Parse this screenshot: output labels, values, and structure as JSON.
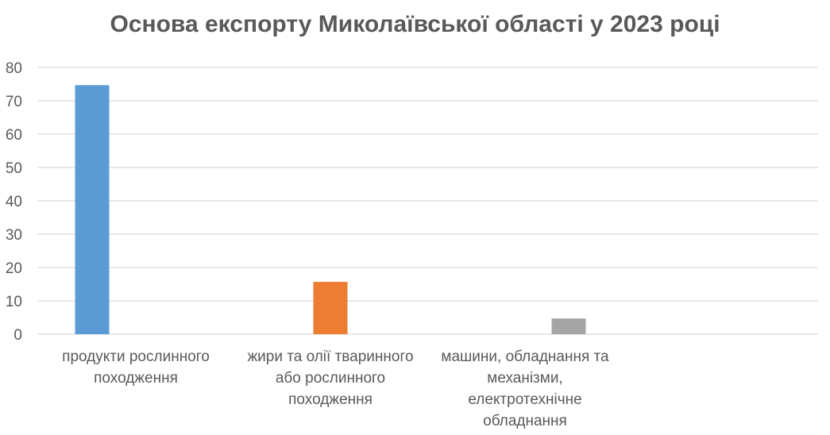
{
  "chart_data": {
    "type": "bar",
    "title": "Основа експорту Миколаївської області у 2023 році",
    "xlabel": "",
    "ylabel": "",
    "ylim": [
      0,
      80
    ],
    "yticks": [
      "0",
      "10",
      "20",
      "30",
      "40",
      "50",
      "60",
      "70",
      "80"
    ],
    "grid": true,
    "legend": "none",
    "categories": [
      "продукти рослинного походження",
      "жири та олії тваринного або рослинного походження",
      "машини, обладнання та механізми, електротехнічне обладнання"
    ],
    "category_lines": [
      [
        "продукти рослинного",
        "походження"
      ],
      [
        "жири та олії тваринного",
        "або рослинного",
        "походження"
      ],
      [
        "машини, обладнання та",
        "механізми,",
        "електротехнічне",
        "обладнання"
      ]
    ],
    "values": [
      74.7,
      15.7,
      4.7
    ],
    "colors": [
      "#5b9bd5",
      "#ed7d31",
      "#a5a5a5"
    ]
  }
}
